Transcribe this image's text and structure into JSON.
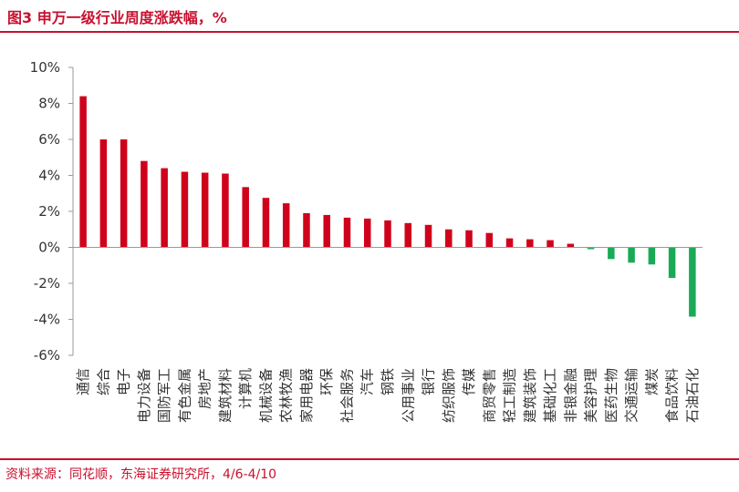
{
  "title": "图3 申万一级行业周度涨跌幅，%",
  "source": "资料来源：同花顺，东海证券研究所，4/6-4/10",
  "colors": {
    "positive": "#d0021b",
    "negative": "#1aaa55",
    "accent": "#c8102e"
  },
  "chart_data": {
    "type": "bar",
    "categories": [
      "通信",
      "综合",
      "电子",
      "电力设备",
      "国防军工",
      "有色金属",
      "房地产",
      "建筑材料",
      "计算机",
      "机械设备",
      "农林牧渔",
      "家用电器",
      "环保",
      "社会服务",
      "汽车",
      "钢铁",
      "公用事业",
      "银行",
      "纺织服饰",
      "传媒",
      "商贸零售",
      "轻工制造",
      "建筑装饰",
      "基础化工",
      "非银金融",
      "美容护理",
      "医药生物",
      "交通运输",
      "煤炭",
      "食品饮料",
      "石油石化"
    ],
    "values": [
      8.4,
      6.0,
      6.0,
      4.8,
      4.4,
      4.2,
      4.15,
      4.1,
      3.35,
      2.75,
      2.45,
      1.9,
      1.8,
      1.65,
      1.6,
      1.5,
      1.35,
      1.25,
      1.0,
      0.95,
      0.8,
      0.5,
      0.45,
      0.4,
      0.2,
      -0.1,
      -0.65,
      -0.85,
      -0.95,
      -1.7,
      -3.85
    ],
    "ylim": [
      -6,
      10
    ],
    "yticks": [
      -6,
      -4,
      -2,
      0,
      2,
      4,
      6,
      8,
      10
    ],
    "ytick_labels": [
      "-6%",
      "-4%",
      "-2%",
      "0%",
      "2%",
      "4%",
      "6%",
      "8%",
      "10%"
    ],
    "grid": false
  }
}
